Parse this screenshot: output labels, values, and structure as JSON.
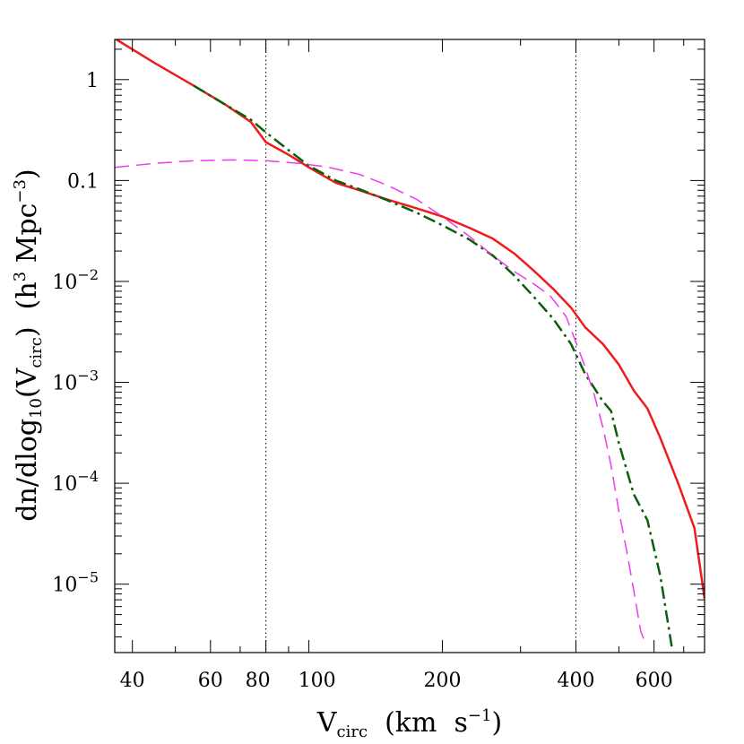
{
  "chart_data": {
    "type": "line",
    "xlabel": {
      "main": "V",
      "sub": "circ",
      "rest": "  (km  s",
      "sup": "−1",
      "end": ")"
    },
    "ylabel": {
      "a": "dn/dlog",
      "sub1": "10",
      "b": "(V",
      "sub2": "circ",
      "c": ")  (h",
      "sup1": "3",
      "d": " Mpc",
      "sup2": "−3",
      "e": ")"
    },
    "xscale": "log",
    "yscale": "log",
    "xlim": [
      36.5,
      780
    ],
    "ylim": [
      2.1e-06,
      2.5
    ],
    "x_ticks": [
      {
        "value": 40,
        "label": "40"
      },
      {
        "value": 60,
        "label": "60"
      },
      {
        "value": 80,
        "label": "80"
      },
      {
        "value": 100,
        "label": "100"
      },
      {
        "value": 200,
        "label": "200"
      },
      {
        "value": 400,
        "label": "400"
      },
      {
        "value": 600,
        "label": "600"
      }
    ],
    "y_ticks": [
      {
        "value": 1,
        "label": "1"
      },
      {
        "value": 0.1,
        "label": "0.1"
      },
      {
        "value": 0.01,
        "base": "10",
        "exp": "−2"
      },
      {
        "value": 0.001,
        "base": "10",
        "exp": "−3"
      },
      {
        "value": 0.0001,
        "base": "10",
        "exp": "−4"
      },
      {
        "value": 1e-05,
        "base": "10",
        "exp": "−5"
      }
    ],
    "vlines": [
      80,
      400
    ],
    "series": [
      {
        "color": "#ee1c1c",
        "style": "solid",
        "width": 2.5,
        "x": [
          36.8,
          45,
          55,
          65,
          74,
          80,
          90,
          100,
          115,
          130,
          150,
          175,
          200,
          230,
          260,
          290,
          320,
          355,
          390,
          420,
          460,
          500,
          540,
          580,
          620,
          680,
          740,
          780
        ],
        "y": [
          2.5,
          1.45,
          0.87,
          0.56,
          0.38,
          0.24,
          0.18,
          0.135,
          0.095,
          0.08,
          0.065,
          0.053,
          0.044,
          0.034,
          0.0265,
          0.019,
          0.013,
          0.0085,
          0.0055,
          0.0035,
          0.0024,
          0.0015,
          0.00083,
          0.00055,
          0.00028,
          0.0001,
          3.6e-05,
          7.2e-06
        ]
      },
      {
        "color": "#0c5e0c",
        "style": "dashdot",
        "width": 2.5,
        "x": [
          55,
          65,
          74,
          80,
          90,
          100,
          115,
          130,
          150,
          175,
          200,
          230,
          260,
          290,
          320,
          355,
          390,
          420,
          460,
          480,
          500,
          540,
          580,
          620,
          660
        ],
        "y": [
          0.87,
          0.56,
          0.4,
          0.3,
          0.2,
          0.14,
          0.1,
          0.082,
          0.064,
          0.048,
          0.036,
          0.026,
          0.018,
          0.0115,
          0.0072,
          0.0043,
          0.0024,
          0.0012,
          0.00065,
          0.00052,
          0.00025,
          7.8e-05,
          4.3e-05,
          1.2e-05,
          2.2e-06
        ]
      },
      {
        "color": "#ee3aee",
        "style": "dashed",
        "width": 1.5,
        "x": [
          36.5,
          45,
          55,
          68,
          80,
          95,
          110,
          130,
          150,
          175,
          200,
          230,
          260,
          290,
          320,
          350,
          380,
          400,
          420,
          440,
          460,
          480,
          500,
          520,
          540,
          560,
          570
        ],
        "y": [
          0.135,
          0.148,
          0.157,
          0.16,
          0.157,
          0.148,
          0.136,
          0.115,
          0.09,
          0.065,
          0.044,
          0.028,
          0.018,
          0.0126,
          0.0096,
          0.0072,
          0.0045,
          0.0025,
          0.0014,
          0.00075,
          0.00036,
          0.00015,
          5.3e-05,
          2.2e-05,
          8.7e-06,
          3.4e-06,
          2.8e-06
        ]
      }
    ]
  }
}
